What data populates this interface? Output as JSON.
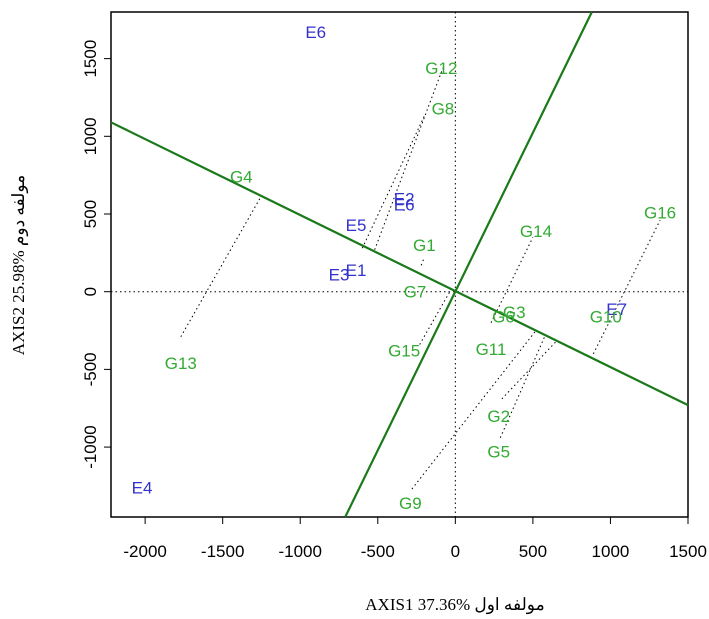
{
  "chart_data": {
    "type": "scatter",
    "title": "",
    "xlabel": "AXIS1 37.36%   مولفه اول",
    "ylabel": "AXIS2 25.98%   مولفه دوم",
    "xlim": [
      -2220,
      1500
    ],
    "ylim": [
      -1450,
      1800
    ],
    "xticks": [
      -2000,
      -1500,
      -1000,
      -500,
      0,
      500,
      1000,
      1500
    ],
    "yticks": [
      -1000,
      -500,
      0,
      500,
      1000,
      1500
    ],
    "xtick_labels": [
      "-2000",
      "-1500",
      "-1000",
      "-500",
      "0",
      "500",
      "1000",
      "1500"
    ],
    "ytick_labels": [
      "-1000",
      "-500",
      "0",
      "500",
      "1000",
      "1500"
    ],
    "grid": false,
    "colors": {
      "environment": "#3333cc",
      "genotype": "#33aa33",
      "line": "#1a7a1a"
    },
    "environments": [
      {
        "label": "E1",
        "x": -640,
        "y": 140
      },
      {
        "label": "E2",
        "x": -330,
        "y": 600
      },
      {
        "label": "E3",
        "x": -750,
        "y": 110
      },
      {
        "label": "E4",
        "x": -2020,
        "y": -1260
      },
      {
        "label": "E5",
        "x": -640,
        "y": 430
      },
      {
        "label": "E6",
        "x": -330,
        "y": 560
      },
      {
        "label": "E6",
        "x": -900,
        "y": 1670
      },
      {
        "label": "E7",
        "x": 1040,
        "y": -110
      }
    ],
    "genotypes": [
      {
        "label": "G1",
        "x": -200,
        "y": 300
      },
      {
        "label": "G2",
        "x": 280,
        "y": -800
      },
      {
        "label": "G3",
        "x": 380,
        "y": -130
      },
      {
        "label": "G4",
        "x": -1380,
        "y": 740
      },
      {
        "label": "G5",
        "x": 280,
        "y": -1030
      },
      {
        "label": "G6",
        "x": 310,
        "y": -160
      },
      {
        "label": "G7",
        "x": -260,
        "y": 0
      },
      {
        "label": "G8",
        "x": -80,
        "y": 1180
      },
      {
        "label": "G9",
        "x": -290,
        "y": -1360
      },
      {
        "label": "G10",
        "x": 970,
        "y": -160
      },
      {
        "label": "G11",
        "x": 230,
        "y": -370
      },
      {
        "label": "G12",
        "x": -90,
        "y": 1440
      },
      {
        "label": "G13",
        "x": -1770,
        "y": -460
      },
      {
        "label": "G14",
        "x": 520,
        "y": 390
      },
      {
        "label": "G15",
        "x": -330,
        "y": -380
      },
      {
        "label": "G16",
        "x": 1320,
        "y": 510
      }
    ],
    "lines": [
      {
        "x1": -2220,
        "y1": 1090,
        "x2": 1500,
        "y2": -730
      },
      {
        "x1": -710,
        "y1": -1450,
        "x2": 880,
        "y2": 1800
      }
    ],
    "projections": [
      {
        "from": [
          -1770,
          -290
        ],
        "to": [
          -1260,
          600
        ]
      },
      {
        "from": [
          -520,
          270
        ],
        "to": [
          -80,
          1440
        ]
      },
      {
        "from": [
          -600,
          280
        ],
        "to": [
          -200,
          1130
        ]
      },
      {
        "from": [
          -330,
          520
        ],
        "to": [
          -330,
          540
        ]
      },
      {
        "from": [
          -280,
          -1270
        ],
        "to": [
          520,
          -250
        ]
      },
      {
        "from": [
          290,
          -940
        ],
        "to": [
          580,
          -280
        ]
      },
      {
        "from": [
          300,
          -690
        ],
        "to": [
          650,
          -320
        ]
      },
      {
        "from": [
          890,
          -400
        ],
        "to": [
          1320,
          460
        ]
      },
      {
        "from": [
          230,
          -200
        ],
        "to": [
          500,
          350
        ]
      },
      {
        "from": [
          -230,
          -340
        ],
        "to": [
          -30,
          10
        ]
      },
      {
        "from": [
          -220,
          170
        ],
        "to": [
          -200,
          220
        ]
      }
    ]
  }
}
